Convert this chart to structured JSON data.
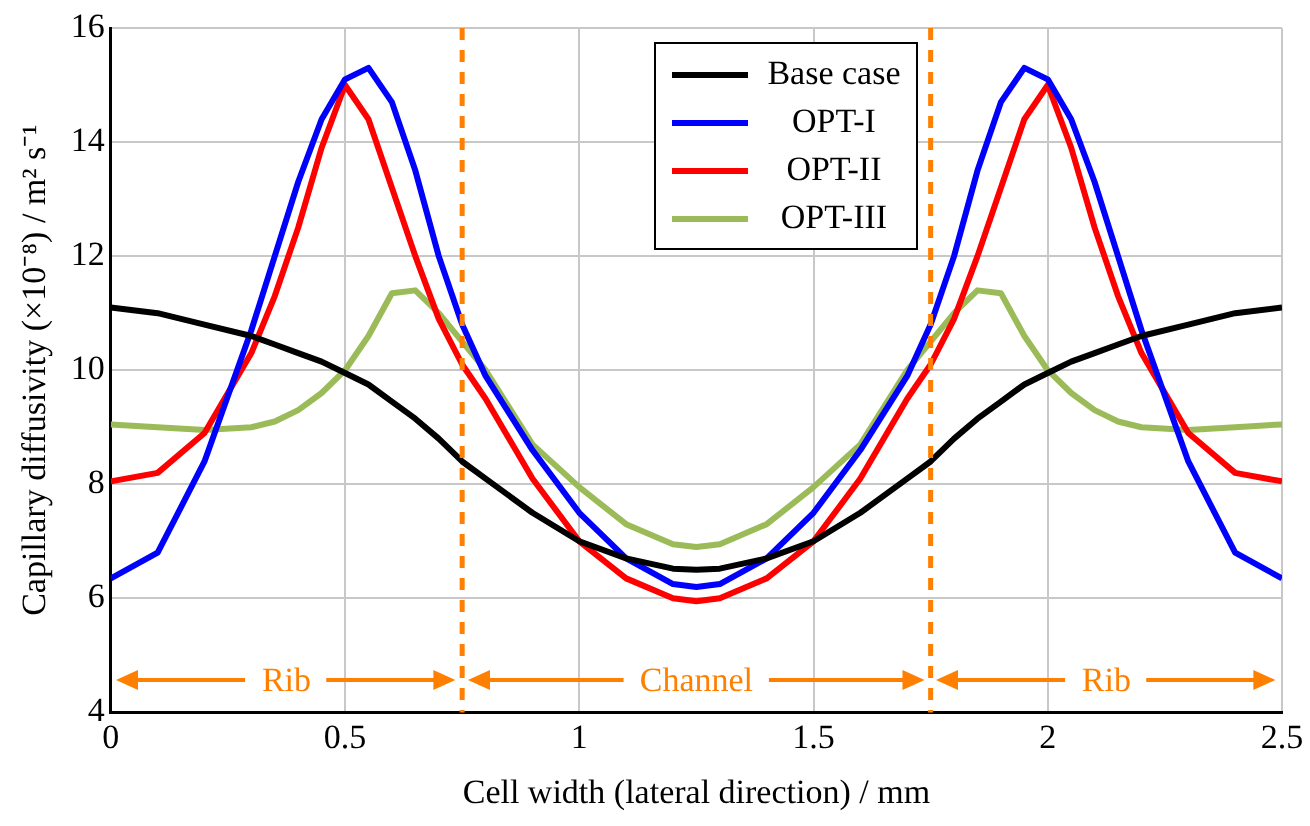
{
  "chart_data": {
    "type": "line",
    "xlabel": "Cell width (lateral direction) / mm",
    "ylabel": "Capillary diffusivity (×10⁻⁸) / m² s⁻¹",
    "x": [
      0,
      0.1,
      0.2,
      0.3,
      0.35,
      0.4,
      0.45,
      0.5,
      0.55,
      0.6,
      0.65,
      0.7,
      0.75,
      0.8,
      0.9,
      1.0,
      1.1,
      1.2,
      1.25,
      1.3,
      1.4,
      1.5,
      1.6,
      1.7,
      1.75,
      1.8,
      1.85,
      1.9,
      1.95,
      2.0,
      2.05,
      2.1,
      2.15,
      2.2,
      2.3,
      2.4,
      2.5
    ],
    "series": [
      {
        "name": "Base case",
        "color": "#000000",
        "values": [
          11.1,
          11.0,
          10.8,
          10.6,
          10.45,
          10.3,
          10.15,
          9.95,
          9.75,
          9.45,
          9.15,
          8.8,
          8.4,
          8.1,
          7.5,
          7.0,
          6.7,
          6.52,
          6.5,
          6.52,
          6.7,
          7.0,
          7.5,
          8.1,
          8.4,
          8.8,
          9.15,
          9.45,
          9.75,
          9.95,
          10.15,
          10.3,
          10.45,
          10.6,
          10.8,
          11.0,
          11.1
        ]
      },
      {
        "name": "OPT-I",
        "color": "#0000ff",
        "values": [
          6.35,
          6.8,
          8.4,
          10.7,
          12.0,
          13.3,
          14.4,
          15.1,
          15.3,
          14.7,
          13.5,
          12.0,
          10.8,
          9.9,
          8.6,
          7.5,
          6.7,
          6.25,
          6.2,
          6.25,
          6.7,
          7.5,
          8.6,
          9.9,
          10.8,
          12.0,
          13.5,
          14.7,
          15.3,
          15.1,
          14.4,
          13.3,
          12.0,
          10.7,
          8.4,
          6.8,
          6.35
        ]
      },
      {
        "name": "OPT-II",
        "color": "#ff0000",
        "values": [
          8.05,
          8.2,
          8.9,
          10.3,
          11.3,
          12.5,
          13.9,
          15.0,
          14.4,
          13.2,
          12.0,
          10.9,
          10.1,
          9.5,
          8.1,
          7.0,
          6.35,
          6.0,
          5.95,
          6.0,
          6.35,
          7.0,
          8.1,
          9.5,
          10.1,
          10.9,
          12.0,
          13.2,
          14.4,
          15.0,
          13.9,
          12.5,
          11.3,
          10.3,
          8.9,
          8.2,
          8.05
        ]
      },
      {
        "name": "OPT-III",
        "color": "#9bbb59",
        "values": [
          9.05,
          9.0,
          8.95,
          9.0,
          9.1,
          9.3,
          9.6,
          10.0,
          10.6,
          11.35,
          11.4,
          11.0,
          10.5,
          10.0,
          8.7,
          7.95,
          7.3,
          6.95,
          6.9,
          6.95,
          7.3,
          7.95,
          8.7,
          10.0,
          10.5,
          11.0,
          11.4,
          11.35,
          10.6,
          10.0,
          9.6,
          9.3,
          9.1,
          9.0,
          8.95,
          9.0,
          9.05
        ]
      }
    ],
    "xlim": [
      0,
      2.5
    ],
    "xticks": [
      0,
      0.5,
      1,
      1.5,
      2,
      2.5
    ],
    "ylim": [
      4,
      16
    ],
    "yticks": [
      4,
      6,
      8,
      10,
      12,
      14,
      16
    ],
    "grid": true,
    "legend": "top",
    "marker": "none",
    "line_style": "solid",
    "ref_lines": [
      {
        "axis": "x",
        "value": 0.75,
        "color": "#ff8000",
        "line_style": "dashed"
      },
      {
        "axis": "x",
        "value": 1.75,
        "color": "#ff8000",
        "line_style": "dashed"
      }
    ],
    "annotations": [
      "Rib",
      "Channel",
      "Rib"
    ]
  }
}
